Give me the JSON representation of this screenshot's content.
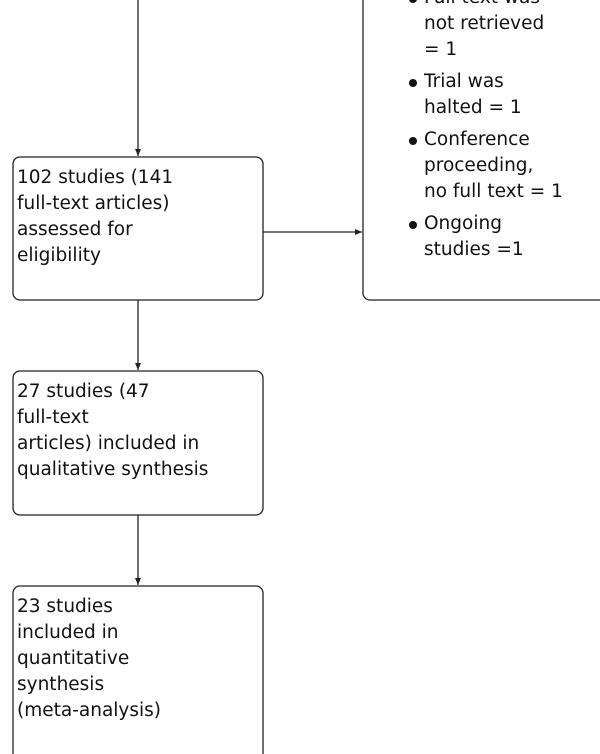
{
  "nodes": [
    {
      "lines": [
        "102 studies (141",
        "full-text articles)",
        "assessed for",
        "eligibility"
      ]
    },
    {
      "lines": [
        "27 studies (47",
        "full-text",
        "articles) included in",
        "qualitative synthesis"
      ]
    },
    {
      "lines": [
        "23 studies",
        "included in",
        "quantitative",
        "synthesis",
        "(meta-analysis)"
      ]
    }
  ],
  "excluded": {
    "items": [
      {
        "lines": [
          "Full text was",
          "not retrieved",
          "= 1"
        ]
      },
      {
        "lines": [
          "Trial was",
          "halted = 1"
        ]
      },
      {
        "lines": [
          "Conference",
          "proceeding,",
          "no full text = 1"
        ]
      },
      {
        "lines": [
          "Ongoing",
          "studies =1"
        ]
      }
    ]
  }
}
